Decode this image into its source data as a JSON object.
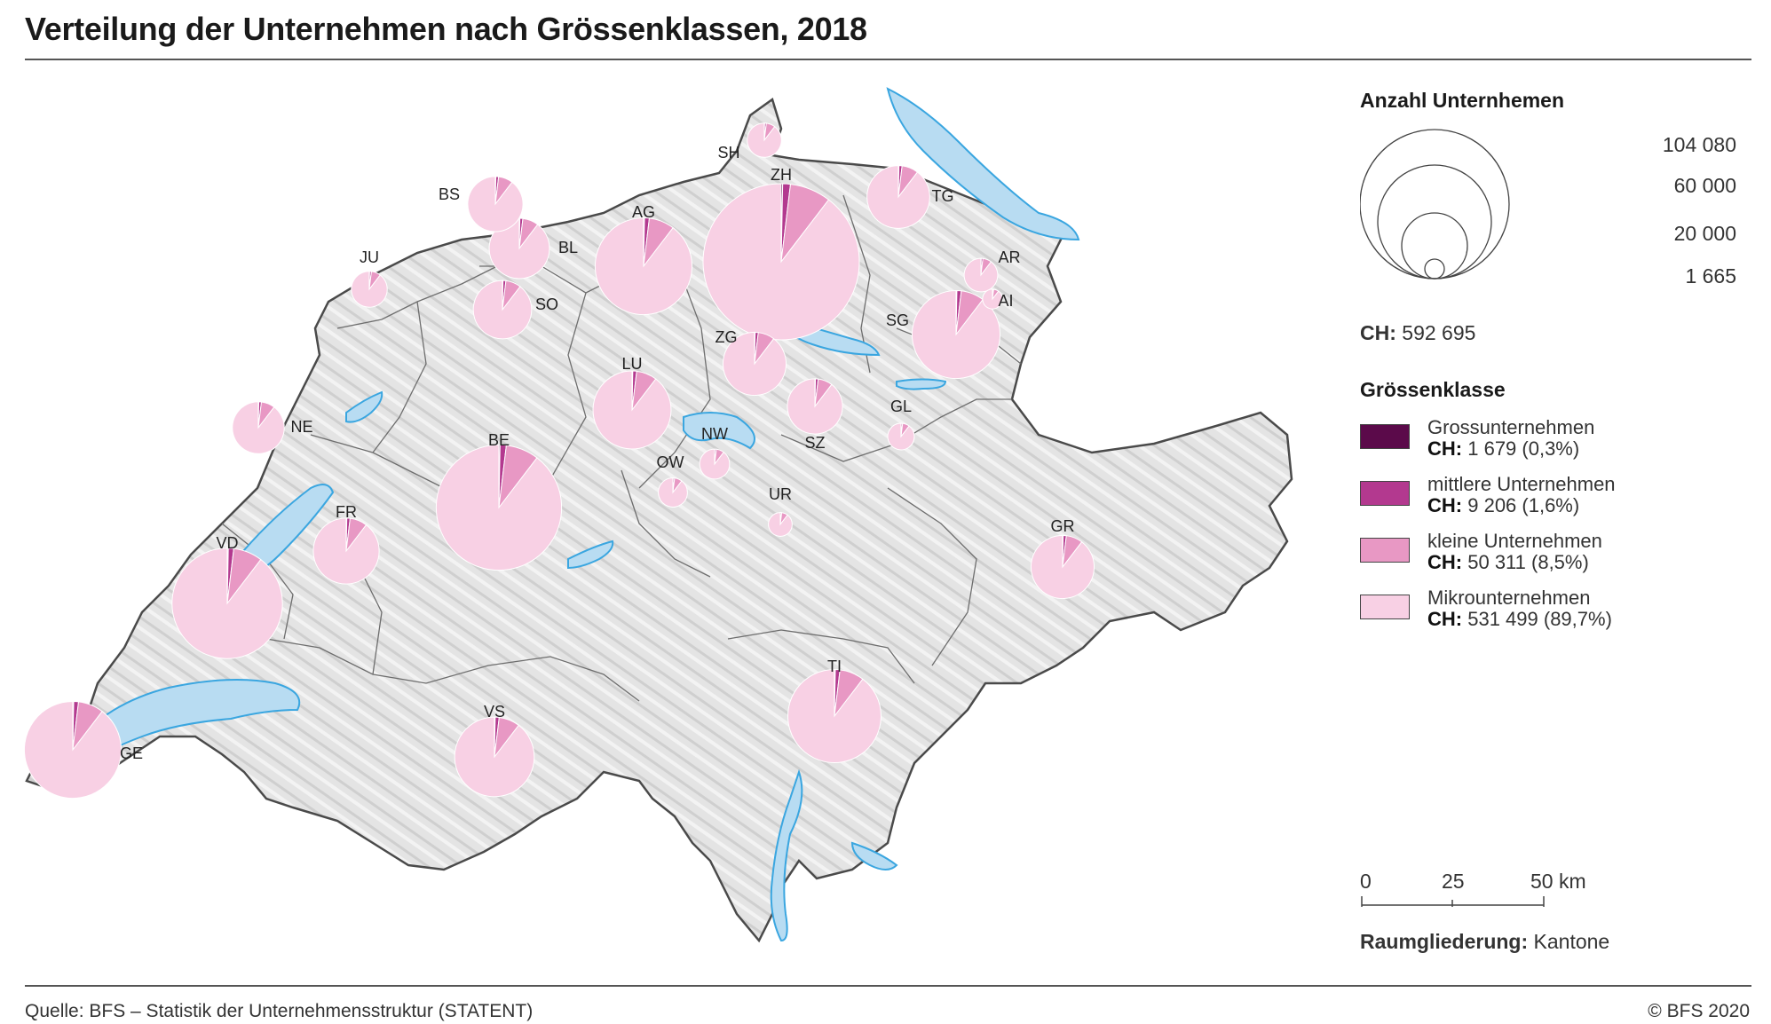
{
  "title": "Verteilung der Unternehmen nach Grössenklassen, 2018",
  "footer": {
    "source": "Quelle: BFS – Statistik der Unternehmensstruktur (STATENT)",
    "copyright": "© BFS 2020"
  },
  "colors": {
    "gross": "#5b0a4a",
    "mittel": "#b3398f",
    "klein": "#e898c4",
    "mikro": "#f8d0e4",
    "lake": "#b8dcf2",
    "lake_border": "#3aa6e0",
    "land": "#e6e6e6",
    "border": "#555555"
  },
  "legend": {
    "size_title": "Anzahl Unternhemen",
    "size_values": [
      "104 080",
      "60 000",
      "20 000",
      "1 665"
    ],
    "total_label": "CH:",
    "total_value": "592 695",
    "class_title": "Grössenklasse",
    "classes": [
      {
        "name": "Grossunternehmen",
        "ch_label": "CH:",
        "ch_value": "1 679 (0,3%)",
        "color_key": "gross"
      },
      {
        "name": "mittlere Unternehmen",
        "ch_label": "CH:",
        "ch_value": "9 206 (1,6%)",
        "color_key": "mittel"
      },
      {
        "name": "kleine Unternehmen",
        "ch_label": "CH:",
        "ch_value": "50 311 (8,5%)",
        "color_key": "klein"
      },
      {
        "name": "Mikrounternehmen",
        "ch_label": "CH:",
        "ch_value": "531 499 (89,7%)",
        "color_key": "mikro"
      }
    ],
    "scale_ticks": [
      "0",
      "25",
      "50 km"
    ],
    "spatial_label": "Raumgliederung:",
    "spatial_value": "Kantone"
  },
  "cantons": [
    {
      "code": "ZH",
      "total": 104080
    },
    {
      "code": "BE",
      "total": 67000
    },
    {
      "code": "VD",
      "total": 52000
    },
    {
      "code": "GE",
      "total": 40000
    },
    {
      "code": "AG",
      "total": 40000
    },
    {
      "code": "SG",
      "total": 33000
    },
    {
      "code": "LU",
      "total": 26000
    },
    {
      "code": "TI",
      "total": 37000
    },
    {
      "code": "VS",
      "total": 27000
    },
    {
      "code": "FR",
      "total": 18500
    },
    {
      "code": "TG",
      "total": 16800
    },
    {
      "code": "SO",
      "total": 14500
    },
    {
      "code": "BL",
      "total": 15500
    },
    {
      "code": "GR",
      "total": 17000
    },
    {
      "code": "BS",
      "total": 13000
    },
    {
      "code": "SZ",
      "total": 13000
    },
    {
      "code": "ZG",
      "total": 17000
    },
    {
      "code": "NE",
      "total": 11500
    },
    {
      "code": "JU",
      "total": 5500
    },
    {
      "code": "SH",
      "total": 5000
    },
    {
      "code": "AR",
      "total": 4800
    },
    {
      "code": "GL",
      "total": 3000
    },
    {
      "code": "OW",
      "total": 3600
    },
    {
      "code": "NW",
      "total": 3800
    },
    {
      "code": "UR",
      "total": 2400
    },
    {
      "code": "AI",
      "total": 1665
    }
  ]
}
